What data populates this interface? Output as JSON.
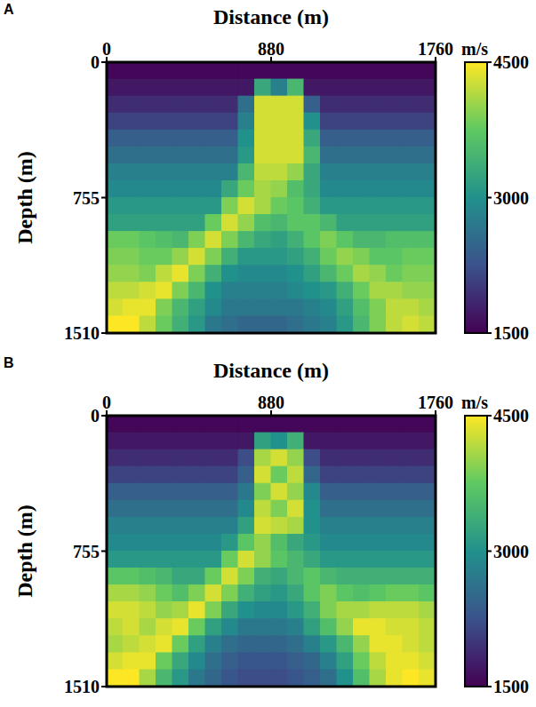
{
  "chart_data": [
    {
      "type": "heatmap",
      "panel": "A",
      "x_label": "Distance (m)",
      "y_label": "Depth (m)",
      "xlim": [
        0,
        1760
      ],
      "xticks": [
        0,
        880,
        1760
      ],
      "ylim": [
        0,
        1510
      ],
      "yticks": [
        0,
        755,
        1510
      ],
      "colorbar": {
        "label": "m/s",
        "range": [
          1500,
          4500
        ],
        "ticks": [
          1500,
          3000,
          4500
        ]
      },
      "x": [
        44,
        132,
        220,
        308,
        396,
        484,
        572,
        660,
        748,
        836,
        924,
        1012,
        1100,
        1188,
        1276,
        1364,
        1452,
        1540,
        1628,
        1716
      ],
      "y": [
        47,
        142,
        236,
        330,
        425,
        519,
        614,
        708,
        802,
        897,
        991,
        1085,
        1180,
        1274,
        1369,
        1463
      ],
      "cells": [
        [
          1550,
          1550,
          1550,
          1550,
          1550,
          1550,
          1550,
          1550,
          1550,
          1550,
          1550,
          1550,
          1550,
          1550,
          1550,
          1550,
          1550,
          1550,
          1550,
          1550
        ],
        [
          1700,
          1700,
          1700,
          1700,
          1700,
          1700,
          1700,
          1700,
          1700,
          3300,
          2800,
          3500,
          1700,
          1700,
          1700,
          1700,
          1700,
          1700,
          1700,
          1700
        ],
        [
          1900,
          1900,
          1900,
          1900,
          1900,
          1900,
          1900,
          1900,
          2600,
          4300,
          4300,
          4300,
          2400,
          1900,
          1900,
          1900,
          1900,
          1900,
          1900,
          1900
        ],
        [
          2100,
          2100,
          2100,
          2100,
          2100,
          2100,
          2100,
          2100,
          2800,
          4300,
          4300,
          4300,
          3000,
          2100,
          2100,
          2100,
          2100,
          2100,
          2100,
          2100
        ],
        [
          2400,
          2400,
          2400,
          2400,
          2400,
          2400,
          2400,
          2400,
          3000,
          4300,
          4300,
          4300,
          3300,
          2400,
          2400,
          2400,
          2400,
          2400,
          2400,
          2400
        ],
        [
          2600,
          2600,
          2600,
          2600,
          2600,
          2600,
          2600,
          2600,
          3100,
          4300,
          4300,
          4300,
          3500,
          2600,
          2600,
          2600,
          2600,
          2600,
          2600,
          2600
        ],
        [
          2800,
          2800,
          2800,
          2800,
          2800,
          2800,
          2800,
          2800,
          3500,
          4200,
          4200,
          4000,
          3300,
          2800,
          2800,
          2800,
          2800,
          2800,
          2800,
          2800
        ],
        [
          2900,
          2900,
          2900,
          2900,
          2900,
          2900,
          2900,
          3300,
          3800,
          4100,
          4000,
          3600,
          3300,
          2900,
          2900,
          2900,
          2900,
          2900,
          2900,
          2900
        ],
        [
          3100,
          3100,
          3100,
          3100,
          3100,
          3100,
          3100,
          3900,
          4300,
          4100,
          3800,
          3700,
          3400,
          3100,
          3100,
          3100,
          3100,
          3100,
          3100,
          3100
        ],
        [
          3200,
          3200,
          3200,
          3200,
          3200,
          3200,
          3800,
          4300,
          4000,
          3600,
          3500,
          3700,
          3700,
          3500,
          3200,
          3200,
          3200,
          3200,
          3200,
          3200
        ],
        [
          3800,
          3800,
          3700,
          3600,
          3500,
          3900,
          4300,
          3900,
          3500,
          3300,
          3200,
          3400,
          3700,
          3900,
          3700,
          3500,
          3500,
          3600,
          3600,
          3600
        ],
        [
          3900,
          3900,
          3800,
          3800,
          4000,
          4300,
          3900,
          3400,
          3100,
          3100,
          3100,
          3200,
          3400,
          3800,
          4000,
          3900,
          3700,
          3700,
          3800,
          3800
        ],
        [
          4000,
          4000,
          3900,
          4200,
          4400,
          3900,
          3400,
          3000,
          2900,
          2900,
          2900,
          3000,
          3200,
          3500,
          3800,
          4100,
          4000,
          3800,
          3900,
          3900
        ],
        [
          4200,
          4200,
          4300,
          4400,
          3900,
          3500,
          3000,
          2800,
          2800,
          2800,
          2800,
          2900,
          3000,
          3100,
          3400,
          3800,
          4100,
          4100,
          4000,
          4000
        ],
        [
          4300,
          4400,
          4400,
          3900,
          3500,
          3200,
          2900,
          2700,
          2700,
          2700,
          2700,
          2700,
          2800,
          2900,
          3200,
          3600,
          3900,
          4200,
          4200,
          4100
        ],
        [
          4500,
          4500,
          4200,
          3800,
          3400,
          3100,
          2700,
          2600,
          2500,
          2500,
          2500,
          2600,
          2700,
          2800,
          3100,
          3500,
          3900,
          4200,
          4300,
          4200
        ]
      ]
    },
    {
      "type": "heatmap",
      "panel": "B",
      "x_label": "Distance (m)",
      "y_label": "Depth (m)",
      "xlim": [
        0,
        1760
      ],
      "xticks": [
        0,
        880,
        1760
      ],
      "ylim": [
        0,
        1510
      ],
      "yticks": [
        0,
        755,
        1510
      ],
      "colorbar": {
        "label": "m/s",
        "range": [
          1500,
          4500
        ],
        "ticks": [
          1500,
          3000,
          4500
        ]
      },
      "x": [
        44,
        132,
        220,
        308,
        396,
        484,
        572,
        660,
        748,
        836,
        924,
        1012,
        1100,
        1188,
        1276,
        1364,
        1452,
        1540,
        1628,
        1716
      ],
      "y": [
        47,
        142,
        236,
        330,
        425,
        519,
        614,
        708,
        802,
        897,
        991,
        1085,
        1180,
        1274,
        1369,
        1463
      ],
      "cells": [
        [
          1550,
          1550,
          1550,
          1550,
          1550,
          1550,
          1550,
          1550,
          1550,
          1550,
          1550,
          1550,
          1550,
          1550,
          1550,
          1550,
          1550,
          1550,
          1550,
          1550
        ],
        [
          1700,
          1700,
          1700,
          1700,
          1700,
          1700,
          1700,
          1700,
          1700,
          3200,
          3000,
          3400,
          1700,
          1700,
          1700,
          1700,
          1700,
          1700,
          1700,
          1700
        ],
        [
          1900,
          1900,
          1900,
          1900,
          1900,
          1900,
          1900,
          1900,
          2200,
          4100,
          4300,
          4000,
          2200,
          1900,
          1900,
          1900,
          1900,
          1900,
          1900,
          1900
        ],
        [
          2100,
          2100,
          2100,
          2100,
          2100,
          2100,
          2100,
          2100,
          2400,
          4300,
          3800,
          4200,
          2500,
          2100,
          2100,
          2100,
          2100,
          2100,
          2100,
          2100
        ],
        [
          2400,
          2400,
          2400,
          2400,
          2400,
          2400,
          2400,
          2400,
          2700,
          3900,
          4300,
          4000,
          2900,
          2400,
          2400,
          2400,
          2400,
          2400,
          2400,
          2400
        ],
        [
          2600,
          2600,
          2600,
          2600,
          2600,
          2600,
          2600,
          2600,
          2900,
          4200,
          3900,
          4300,
          3000,
          2600,
          2600,
          2600,
          2600,
          2600,
          2600,
          2600
        ],
        [
          2800,
          2800,
          2800,
          2800,
          2800,
          2800,
          2800,
          2800,
          3200,
          4300,
          4200,
          4100,
          3000,
          2800,
          2800,
          2800,
          2800,
          2800,
          2800,
          2800
        ],
        [
          2900,
          2900,
          2900,
          2900,
          2900,
          2900,
          2900,
          3100,
          3700,
          4000,
          3600,
          3300,
          3100,
          2900,
          2900,
          2900,
          2900,
          2900,
          2900,
          2900
        ],
        [
          3100,
          3100,
          3100,
          3100,
          3100,
          3100,
          3100,
          3800,
          4300,
          4000,
          3700,
          3500,
          3300,
          3100,
          3100,
          3100,
          3100,
          3100,
          3100,
          3100
        ],
        [
          3700,
          3700,
          3600,
          3500,
          3300,
          3300,
          3800,
          4300,
          3900,
          3400,
          3300,
          3500,
          3700,
          3500,
          3400,
          3400,
          3400,
          3400,
          3400,
          3400
        ],
        [
          4100,
          4100,
          4000,
          3800,
          3600,
          3900,
          4300,
          3900,
          3400,
          3200,
          3100,
          3300,
          3700,
          3900,
          3700,
          3600,
          3700,
          3800,
          3800,
          3700
        ],
        [
          4300,
          4300,
          4200,
          4000,
          4100,
          4400,
          3900,
          3300,
          3000,
          2900,
          2900,
          3100,
          3400,
          3900,
          4100,
          4100,
          4200,
          4200,
          4200,
          4100
        ],
        [
          4200,
          4300,
          4100,
          4300,
          4400,
          3800,
          3200,
          2900,
          2700,
          2700,
          2700,
          2800,
          3200,
          3600,
          4000,
          4400,
          4400,
          4300,
          4300,
          4200
        ],
        [
          4100,
          4200,
          4300,
          4400,
          3800,
          3200,
          2800,
          2600,
          2500,
          2500,
          2500,
          2600,
          2800,
          3100,
          3500,
          4000,
          4400,
          4400,
          4300,
          4200
        ],
        [
          4300,
          4400,
          4400,
          3800,
          3300,
          2900,
          2600,
          2400,
          2300,
          2300,
          2300,
          2400,
          2500,
          2800,
          3200,
          3800,
          4200,
          4400,
          4400,
          4300
        ],
        [
          4500,
          4500,
          4100,
          3500,
          3100,
          2700,
          2500,
          2300,
          2200,
          2200,
          2200,
          2300,
          2400,
          2600,
          3000,
          3600,
          4100,
          4400,
          4500,
          4400
        ]
      ]
    }
  ]
}
